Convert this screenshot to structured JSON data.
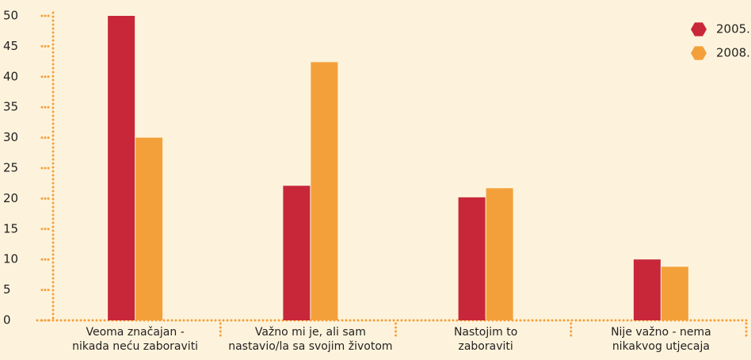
{
  "chart_data": {
    "type": "bar",
    "categories": [
      "Veoma značajan -\nnikada neću zaboraviti",
      "Važno mi je, ali sam\nnastavio/la sa svojim životom",
      "Nastojim to\nzaboraviti",
      "Nije važno - nema\nnikakvog utjecaja"
    ],
    "series": [
      {
        "name": "2005.",
        "color": "#c8273a",
        "values": [
          50.0,
          22.1,
          20.2,
          10.0
        ]
      },
      {
        "name": "2008.",
        "color": "#f4a03a",
        "values": [
          30.0,
          42.4,
          21.7,
          8.8
        ]
      }
    ],
    "ylim": [
      0,
      50
    ],
    "yticks": [
      0,
      5,
      10,
      15,
      20,
      25,
      30,
      35,
      40,
      45,
      50
    ],
    "legend": "top-right"
  }
}
